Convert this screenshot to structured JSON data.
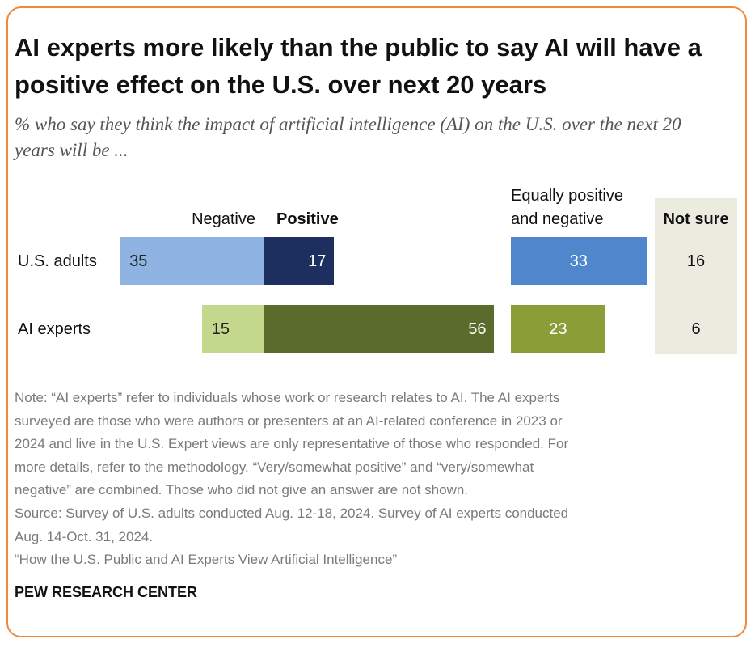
{
  "chart_data": {
    "type": "diverging_bar",
    "title": "AI experts more likely than the public to say AI will have a positive effect on the U.S. over next 20 years",
    "subtitle": "% who say they think the impact of artificial intelligence (AI) on the U.S. over the next 20 years will be ...",
    "categories": [
      "U.S. adults",
      "AI experts"
    ],
    "series": [
      {
        "name": "Negative",
        "colors": [
          "#8fb4e3",
          "#c3d88c"
        ],
        "values": [
          35,
          15
        ]
      },
      {
        "name": "Positive",
        "bold": true,
        "colors": [
          "#1c2f5e",
          "#5b6b2b"
        ],
        "values": [
          17,
          56
        ]
      },
      {
        "name": "Equally positive and negative",
        "colors": [
          "#4f86cc",
          "#8b9d36"
        ],
        "values": [
          33,
          23
        ]
      },
      {
        "name": "Not sure",
        "bold": true,
        "color": "#ecebdf",
        "values": [
          16,
          6
        ]
      }
    ],
    "notes": [
      "Note: “AI experts” refer to individuals whose work or research relates to AI. The AI experts",
      "surveyed are those who were authors or presenters at an AI-related conference in 2023 or",
      "2024 and live in the U.S. Expert views are only representative of those who responded. For",
      "more details, refer to the methodology. “Very/somewhat positive” and “very/somewhat",
      "negative” are combined. Those who did not give an answer are not shown.",
      "Source: Survey of U.S. adults conducted Aug. 12-18, 2024. Survey of AI experts conducted",
      "Aug. 14-Oct. 31, 2024.",
      "“How the U.S. Public and AI Experts View Artificial Intelligence”"
    ],
    "source_org": "PEW RESEARCH CENTER"
  }
}
